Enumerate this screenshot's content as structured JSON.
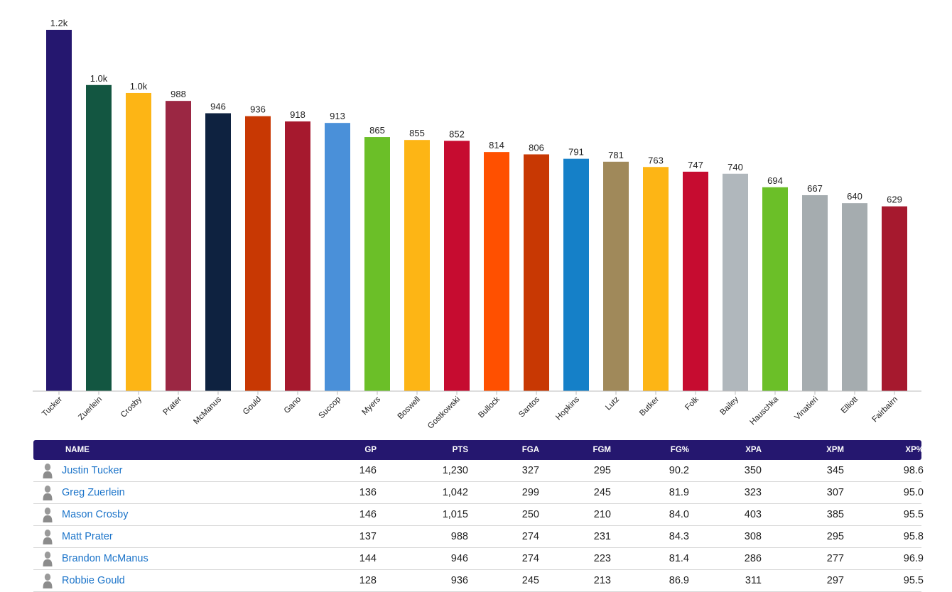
{
  "chart_data": {
    "type": "bar",
    "title": "",
    "xlabel": "",
    "ylabel": "",
    "ylim": [
      0,
      1230
    ],
    "grid": false,
    "categories": [
      "Tucker",
      "Zuerlein",
      "Crosby",
      "Prater",
      "McManus",
      "Gould",
      "Gano",
      "Succop",
      "Myers",
      "Boswell",
      "Gostkowski",
      "Bullock",
      "Santos",
      "Hopkins",
      "Lutz",
      "Butker",
      "Folk",
      "Bailey",
      "Hauschka",
      "Vinatieri",
      "Elliott",
      "Fairbairn"
    ],
    "values": [
      1230,
      1042,
      1015,
      988,
      946,
      936,
      918,
      913,
      865,
      855,
      852,
      814,
      806,
      791,
      781,
      763,
      747,
      740,
      694,
      667,
      640,
      629
    ],
    "value_labels": [
      "1.2k",
      "1.0k",
      "1.0k",
      "988",
      "946",
      "936",
      "918",
      "913",
      "865",
      "855",
      "852",
      "814",
      "806",
      "791",
      "781",
      "763",
      "747",
      "740",
      "694",
      "667",
      "640",
      "629"
    ],
    "colors": [
      "#25176f",
      "#135641",
      "#fdb515",
      "#9b2743",
      "#0e2240",
      "#c83803",
      "#a6192e",
      "#4a90d9",
      "#6bbf28",
      "#fdb515",
      "#c60c30",
      "#ff5000",
      "#c83803",
      "#1580c8",
      "#a0895a",
      "#fdb515",
      "#c60c30",
      "#b0b7bc",
      "#6bbf28",
      "#a5acaf",
      "#a5acaf",
      "#a6192e"
    ]
  },
  "table": {
    "header_bg": "#25176f",
    "link_color": "#1a73c9",
    "columns": {
      "name": "NAME",
      "gp": "GP",
      "pts": "PTS",
      "fga": "FGA",
      "fgm": "FGM",
      "fgp": "FG%",
      "xpa": "XPA",
      "xpm": "XPM",
      "xpp": "XP%"
    },
    "rows": [
      {
        "name": "Justin Tucker",
        "gp": "146",
        "pts": "1,230",
        "fga": "327",
        "fgm": "295",
        "fgp": "90.2",
        "xpa": "350",
        "xpm": "345",
        "xpp": "98.6"
      },
      {
        "name": "Greg Zuerlein",
        "gp": "136",
        "pts": "1,042",
        "fga": "299",
        "fgm": "245",
        "fgp": "81.9",
        "xpa": "323",
        "xpm": "307",
        "xpp": "95.0"
      },
      {
        "name": "Mason Crosby",
        "gp": "146",
        "pts": "1,015",
        "fga": "250",
        "fgm": "210",
        "fgp": "84.0",
        "xpa": "403",
        "xpm": "385",
        "xpp": "95.5"
      },
      {
        "name": "Matt Prater",
        "gp": "137",
        "pts": "988",
        "fga": "274",
        "fgm": "231",
        "fgp": "84.3",
        "xpa": "308",
        "xpm": "295",
        "xpp": "95.8"
      },
      {
        "name": "Brandon McManus",
        "gp": "144",
        "pts": "946",
        "fga": "274",
        "fgm": "223",
        "fgp": "81.4",
        "xpa": "286",
        "xpm": "277",
        "xpp": "96.9"
      },
      {
        "name": "Robbie Gould",
        "gp": "128",
        "pts": "936",
        "fga": "245",
        "fgm": "213",
        "fgp": "86.9",
        "xpa": "311",
        "xpm": "297",
        "xpp": "95.5"
      }
    ]
  }
}
